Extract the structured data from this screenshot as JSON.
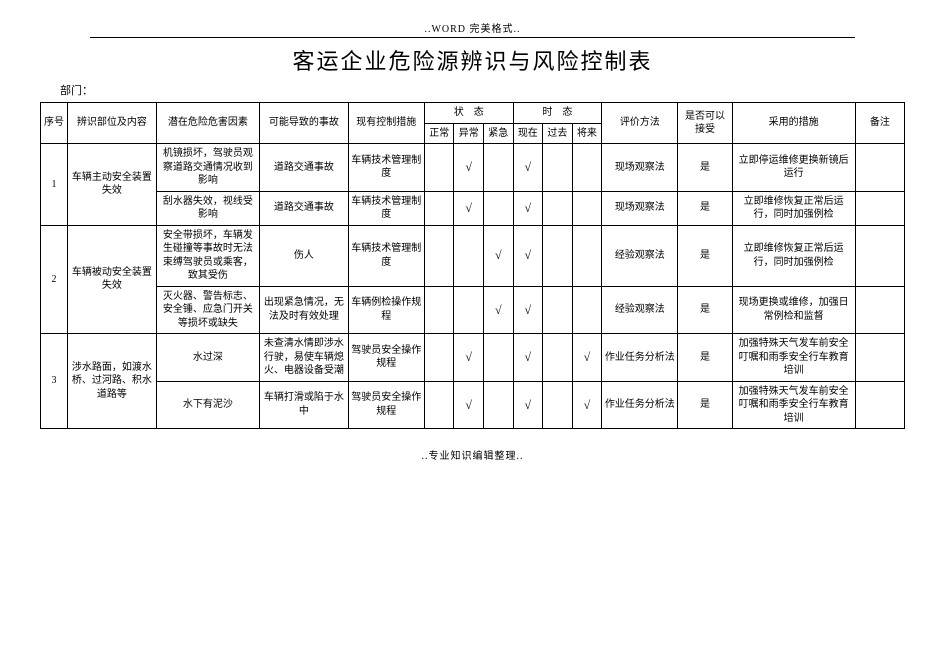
{
  "header_note": "..WORD 完美格式..",
  "title": "客运企业危险源辨识与风险控制表",
  "department_label": "部门：",
  "footer_note": "..专业知识编辑整理..",
  "columns": {
    "seq": "序号",
    "part": "辨识部位及内容",
    "hazard": "潜在危险危害因素",
    "accident": "可能导致的事故",
    "control": "现有控制措施",
    "state": "状　态",
    "time": "时　态",
    "state_normal": "正常",
    "state_abnormal": "异常",
    "state_emerg": "紧急",
    "time_now": "现在",
    "time_past": "过去",
    "time_future": "将来",
    "eval": "评价方法",
    "accept": "是否可以接受",
    "measure": "采用的措施",
    "note": "备注"
  },
  "check": "√",
  "rows": [
    {
      "seq": "1",
      "part": "车辆主动安全装置失效",
      "sub": [
        {
          "hazard": "机镜损坏，驾驶员观察道路交通情况收到影响",
          "accident": "道路交通事故",
          "control": "车辆技术管理制度",
          "s": [
            "",
            "√",
            ""
          ],
          "t": [
            "√",
            "",
            ""
          ],
          "eval": "现场观察法",
          "accept": "是",
          "measure": "立即停运维修更换新镜后运行",
          "note": ""
        },
        {
          "hazard": "刮水器失效，视线受影响",
          "accident": "道路交通事故",
          "control": "车辆技术管理制度",
          "s": [
            "",
            "√",
            ""
          ],
          "t": [
            "√",
            "",
            ""
          ],
          "eval": "现场观察法",
          "accept": "是",
          "measure": "立即维修恢复正常后运行，同时加强例检",
          "note": ""
        }
      ]
    },
    {
      "seq": "2",
      "part": "车辆被动安全装置失效",
      "sub": [
        {
          "hazard": "安全带损坏，车辆发生碰撞等事故时无法束缚驾驶员或乘客，致其受伤",
          "accident": "伤人",
          "control": "车辆技术管理制度",
          "s": [
            "",
            "",
            "√"
          ],
          "t": [
            "√",
            "",
            ""
          ],
          "eval": "经验观察法",
          "accept": "是",
          "measure": "立即维修恢复正常后运行，同时加强例检",
          "note": ""
        },
        {
          "hazard": "灭火器、警告标志、安全锤、应急门开关等损坏或缺失",
          "accident": "出现紧急情况，无法及时有效处理",
          "control": "车辆例检操作规程",
          "s": [
            "",
            "",
            "√"
          ],
          "t": [
            "√",
            "",
            ""
          ],
          "eval": "经验观察法",
          "accept": "是",
          "measure": "现场更换或维修，加强日常例检和监督",
          "note": ""
        }
      ]
    },
    {
      "seq": "3",
      "part": "涉水路面，如渡水桥、过河路、积水道路等",
      "sub": [
        {
          "hazard": "水过深",
          "accident": "未查清水情即涉水行驶，易使车辆熄火、电器设备受潮",
          "control": "驾驶员安全操作规程",
          "s": [
            "",
            "√",
            ""
          ],
          "t": [
            "√",
            "",
            "√"
          ],
          "eval": "作业任务分析法",
          "accept": "是",
          "measure": "加强特殊天气发车前安全叮嘱和雨季安全行车教育培训",
          "note": ""
        },
        {
          "hazard": "水下有泥沙",
          "accident": "车辆打滑或陷于水中",
          "control": "驾驶员安全操作规程",
          "s": [
            "",
            "√",
            ""
          ],
          "t": [
            "√",
            "",
            "√"
          ],
          "eval": "作业任务分析法",
          "accept": "是",
          "measure": "加强特殊天气发车前安全叮嘱和雨季安全行车教育培训",
          "note": ""
        }
      ]
    }
  ]
}
